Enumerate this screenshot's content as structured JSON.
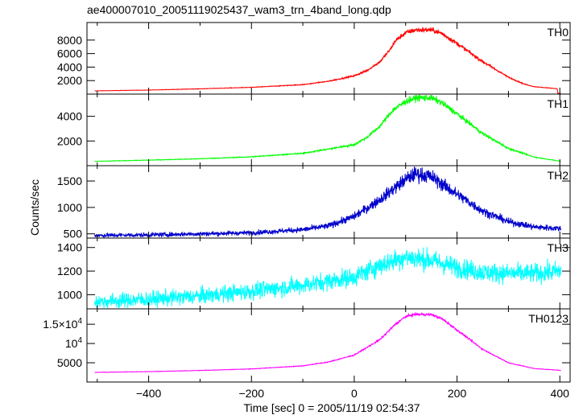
{
  "chart_data": [
    {
      "type": "line",
      "title": "ae400007010_20051119025437_wam3_trn_4band_long.qdp",
      "panel_label": "TH0",
      "color": "#ff0000",
      "ylim": [
        0,
        10600
      ],
      "yticks": [
        2000,
        4000,
        6000,
        8000
      ],
      "ytick_labels": [
        "2000",
        "4000",
        "6000",
        "8000"
      ],
      "x": [
        -505,
        -400,
        -300,
        -200,
        -100,
        -50,
        0,
        25,
        50,
        70,
        80,
        100,
        120,
        150,
        170,
        200,
        250,
        300,
        330,
        350,
        395,
        396,
        402
      ],
      "values": [
        480,
        600,
        780,
        1000,
        1400,
        1900,
        2700,
        3500,
        4800,
        6600,
        7900,
        9100,
        9500,
        9500,
        9000,
        7500,
        4800,
        2500,
        1500,
        1100,
        800,
        100,
        100
      ],
      "noise": 0.02
    },
    {
      "type": "line",
      "panel_label": "TH1",
      "color": "#00ff00",
      "ylim": [
        0,
        5800
      ],
      "yticks": [
        2000,
        4000
      ],
      "ytick_labels": [
        "2000",
        "4000"
      ],
      "x": [
        -505,
        -400,
        -300,
        -200,
        -100,
        0,
        25,
        50,
        75,
        100,
        120,
        150,
        170,
        200,
        250,
        300,
        350,
        402
      ],
      "values": [
        350,
        450,
        560,
        720,
        1000,
        1700,
        2300,
        3200,
        4500,
        5200,
        5500,
        5500,
        5100,
        4200,
        2600,
        1400,
        700,
        350
      ],
      "noise": 0.025
    },
    {
      "type": "line",
      "panel_label": "TH2",
      "ylabel": "Counts/sec",
      "color": "#0000cc",
      "ylim": [
        420,
        1790
      ],
      "yticks": [
        500,
        1000,
        1500
      ],
      "ytick_labels": [
        "500",
        "1000",
        "1500"
      ],
      "x": [
        -505,
        -400,
        -300,
        -200,
        -100,
        -50,
        0,
        50,
        100,
        120,
        150,
        200,
        250,
        300,
        350,
        402
      ],
      "values": [
        470,
        480,
        500,
        520,
        580,
        650,
        830,
        1150,
        1530,
        1640,
        1580,
        1250,
        930,
        730,
        630,
        600
      ],
      "noise": 0.045
    },
    {
      "type": "line",
      "panel_label": "TH3",
      "color": "#00ffff",
      "ylim": [
        880,
        1480
      ],
      "yticks": [
        1000,
        1200,
        1400
      ],
      "ytick_labels": [
        "1000",
        "1200",
        "1400"
      ],
      "x": [
        -505,
        -400,
        -300,
        -200,
        -100,
        0,
        50,
        100,
        150,
        200,
        250,
        300,
        350,
        402
      ],
      "values": [
        940,
        960,
        990,
        1030,
        1080,
        1150,
        1250,
        1320,
        1290,
        1230,
        1190,
        1180,
        1180,
        1200
      ],
      "noise": 0.035
    },
    {
      "type": "line",
      "panel_label": "TH0123",
      "color": "#ff00ff",
      "ylim": [
        0,
        19000
      ],
      "yticks": [
        5000,
        10000,
        15000
      ],
      "ytick_labels": [
        "5000",
        "10^4",
        "1.5×10^4"
      ],
      "x": [
        -505,
        -400,
        -300,
        -200,
        -100,
        -50,
        0,
        50,
        80,
        100,
        120,
        150,
        170,
        200,
        250,
        300,
        350,
        395,
        402
      ],
      "values": [
        2500,
        2700,
        3000,
        3400,
        4200,
        5200,
        7000,
        11000,
        15000,
        17000,
        17600,
        17500,
        16500,
        13500,
        8500,
        5000,
        3500,
        3100,
        3000
      ],
      "noise": 0.01
    }
  ],
  "x_axis": {
    "label": "Time [sec] 0 = 2005/11/19 02:54:37",
    "xlim": [
      -520,
      420
    ],
    "ticks": [
      -400,
      -200,
      0,
      200,
      400
    ],
    "tick_labels": [
      "−400",
      "−200",
      "0",
      "200",
      "400"
    ]
  },
  "colors": {
    "frame": "#000000",
    "background": "#ffffff"
  }
}
